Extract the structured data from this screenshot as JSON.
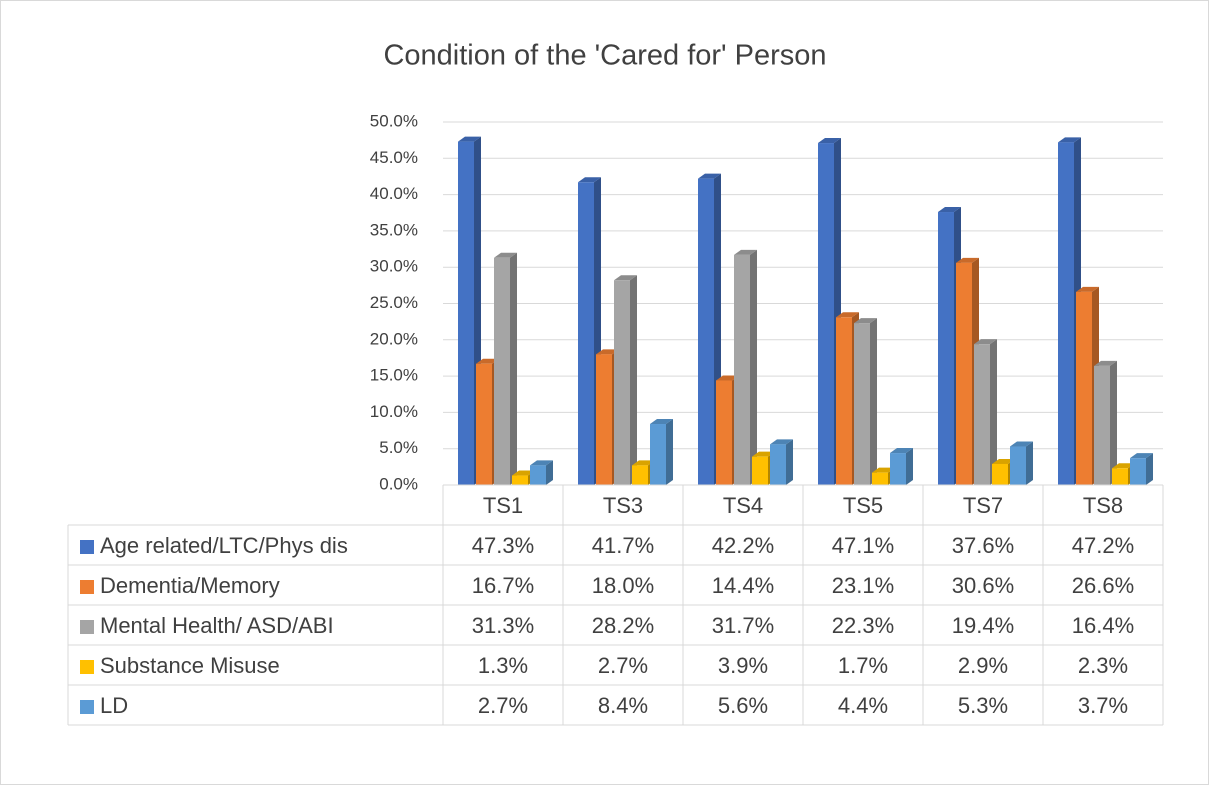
{
  "chart_data": {
    "type": "bar3d",
    "title": "Condition of the 'Cared for' Person",
    "categories": [
      "TS1",
      "TS3",
      "TS4",
      "TS5",
      "TS7",
      "TS8"
    ],
    "series": [
      {
        "name": "Age related/LTC/Phys dis",
        "color": "#4472c4",
        "values": [
          47.3,
          41.7,
          42.2,
          47.1,
          37.6,
          47.2
        ],
        "value_labels": [
          "47.3%",
          "41.7%",
          "42.2%",
          "47.1%",
          "37.6%",
          "47.2%"
        ]
      },
      {
        "name": "Dementia/Memory",
        "color": "#ed7d31",
        "values": [
          16.7,
          18.0,
          14.4,
          23.1,
          30.6,
          26.6
        ],
        "value_labels": [
          "16.7%",
          "18.0%",
          "14.4%",
          "23.1%",
          "30.6%",
          "26.6%"
        ]
      },
      {
        "name": "Mental Health/ ASD/ABI",
        "color": "#a5a5a5",
        "values": [
          31.3,
          28.2,
          31.7,
          22.3,
          19.4,
          16.4
        ],
        "value_labels": [
          "31.3%",
          "28.2%",
          "31.7%",
          "22.3%",
          "19.4%",
          "16.4%"
        ]
      },
      {
        "name": "Substance Misuse",
        "color": "#ffc000",
        "values": [
          1.3,
          2.7,
          3.9,
          1.7,
          2.9,
          2.3
        ],
        "value_labels": [
          "1.3%",
          "2.7%",
          "3.9%",
          "1.7%",
          "2.9%",
          "2.3%"
        ]
      },
      {
        "name": "LD",
        "color": "#5b9bd5",
        "values": [
          2.7,
          8.4,
          5.6,
          4.4,
          5.3,
          3.7
        ],
        "value_labels": [
          "2.7%",
          "8.4%",
          "5.6%",
          "4.4%",
          "5.3%",
          "3.7%"
        ]
      }
    ],
    "ylim": [
      0,
      50
    ],
    "yticks": [
      {
        "value": 0,
        "label": "0.0%"
      },
      {
        "value": 5,
        "label": "5.0%"
      },
      {
        "value": 10,
        "label": "10.0%"
      },
      {
        "value": 15,
        "label": "15.0%"
      },
      {
        "value": 20,
        "label": "20.0%"
      },
      {
        "value": 25,
        "label": "25.0%"
      },
      {
        "value": 30,
        "label": "30.0%"
      },
      {
        "value": 35,
        "label": "35.0%"
      },
      {
        "value": 40,
        "label": "40.0%"
      },
      {
        "value": 45,
        "label": "45.0%"
      },
      {
        "value": 50,
        "label": "50.0%"
      }
    ],
    "grid": true
  }
}
